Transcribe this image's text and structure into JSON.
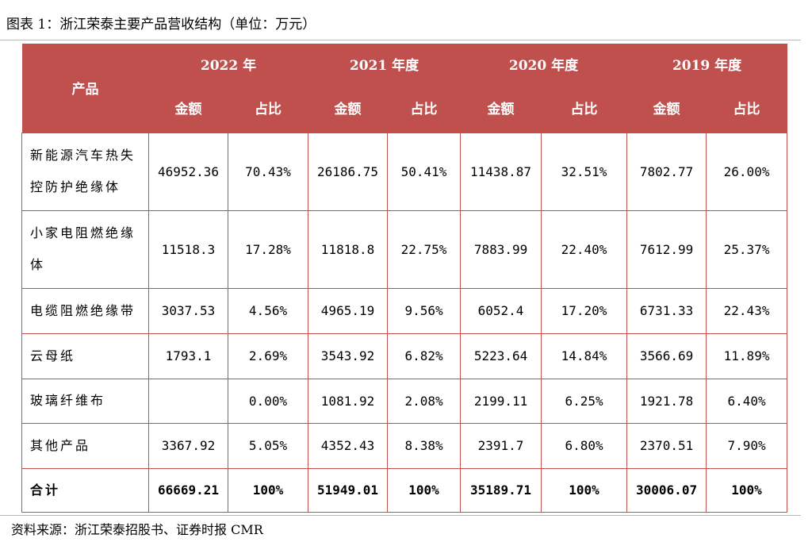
{
  "header": {
    "title": "图表 1：浙江荣泰主要产品营收结构（单位：万元）"
  },
  "table": {
    "product_header": "产品",
    "years": [
      "2022 年",
      "2021 年度",
      "2020 年度",
      "2019 年度"
    ],
    "sub_headers": [
      "金额",
      "占比"
    ],
    "rows": [
      {
        "product": "新能源汽车热失控防护绝缘体",
        "cells": [
          "46952.36",
          "70.43%",
          "26186.75",
          "50.41%",
          "11438.87",
          "32.51%",
          "7802.77",
          "26.00%"
        ]
      },
      {
        "product": "小家电阻燃绝缘体",
        "cells": [
          "11518.3",
          "17.28%",
          "11818.8",
          "22.75%",
          "7883.99",
          "22.40%",
          "7612.99",
          "25.37%"
        ]
      },
      {
        "product": "电缆阻燃绝缘带",
        "cells": [
          "3037.53",
          "4.56%",
          "4965.19",
          "9.56%",
          "6052.4",
          "17.20%",
          "6731.33",
          "22.43%"
        ]
      },
      {
        "product": "云母纸",
        "cells": [
          "1793.1",
          "2.69%",
          "3543.92",
          "6.82%",
          "5223.64",
          "14.84%",
          "3566.69",
          "11.89%"
        ]
      },
      {
        "product": "玻璃纤维布",
        "cells": [
          null,
          "0.00%",
          "1081.92",
          "2.08%",
          "2199.11",
          "6.25%",
          "1921.78",
          "6.40%"
        ]
      },
      {
        "product": "其他产品",
        "cells": [
          "3367.92",
          "5.05%",
          "4352.43",
          "8.38%",
          "2391.7",
          "6.80%",
          "2370.51",
          "7.90%"
        ]
      }
    ],
    "total": {
      "product": "合计",
      "cells": [
        "66669.21",
        "100%",
        "51949.01",
        "100%",
        "35189.71",
        "100%",
        "30006.07",
        "100%"
      ]
    }
  },
  "footer": {
    "source": "资料来源：浙江荣泰招股书、证券时报 CMR"
  }
}
